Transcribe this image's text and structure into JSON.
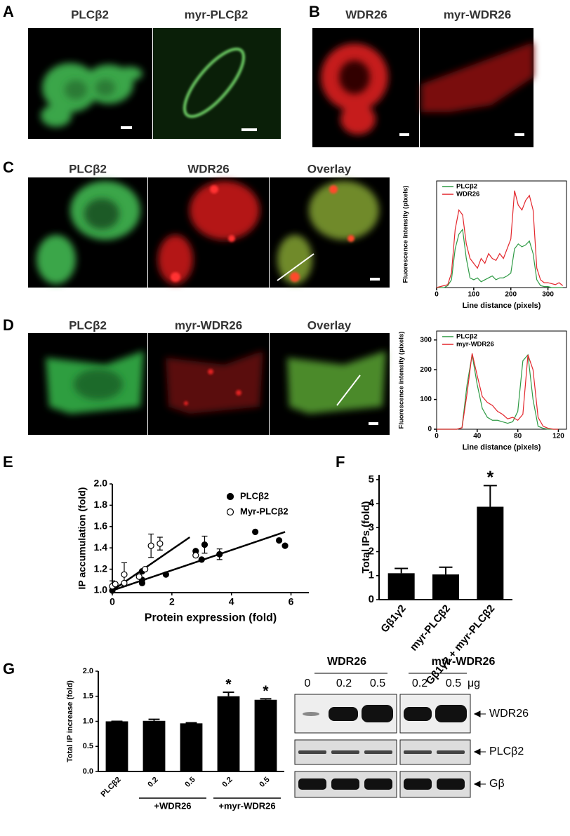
{
  "panel_labels": [
    "A",
    "B",
    "C",
    "D",
    "E",
    "F",
    "G"
  ],
  "image_titles": {
    "A": [
      "PLCβ2",
      "myr-PLCβ2"
    ],
    "B": [
      "WDR26",
      "myr-WDR26"
    ],
    "C": [
      "PLCβ2",
      "WDR26",
      "Overlay"
    ],
    "D": [
      "PLCβ2",
      "myr-WDR26",
      "Overlay"
    ]
  },
  "blot": {
    "groups": [
      "WDR26",
      "myr-WDR26"
    ],
    "lanes": [
      "0",
      "0.2",
      "0.5",
      "0.2",
      "0.5"
    ],
    "unit": "μg",
    "bands": [
      "WDR26",
      "PLCβ2",
      "Gβ"
    ]
  },
  "chart_data": [
    {
      "type": "line",
      "xlabel": "Line distance (pixels)",
      "ylabel": "Fluorescence intensity (pixels)",
      "box": true,
      "legend": "upper-left",
      "x": [
        0,
        10,
        20,
        30,
        40,
        50,
        60,
        70,
        80,
        90,
        100,
        110,
        120,
        130,
        140,
        150,
        160,
        170,
        180,
        190,
        200,
        210,
        220,
        230,
        240,
        250,
        260,
        270,
        280,
        290,
        300,
        310,
        320,
        330,
        340
      ],
      "xlim": [
        0,
        350
      ],
      "xticks": [
        0,
        100,
        200,
        300
      ],
      "ylim": [
        0,
        110
      ],
      "series": [
        {
          "name": "PLCβ2",
          "color": "#2e9a44",
          "values": [
            0,
            0,
            0,
            2,
            8,
            40,
            55,
            60,
            30,
            10,
            8,
            10,
            6,
            8,
            10,
            12,
            8,
            10,
            10,
            12,
            15,
            40,
            45,
            42,
            44,
            48,
            35,
            8,
            2,
            1,
            1,
            0,
            0,
            0,
            0
          ]
        },
        {
          "name": "WDR26",
          "color": "#e3262c",
          "values": [
            0,
            1,
            2,
            3,
            15,
            60,
            80,
            75,
            45,
            30,
            25,
            20,
            30,
            25,
            35,
            30,
            28,
            35,
            30,
            40,
            50,
            100,
            85,
            80,
            90,
            95,
            80,
            20,
            8,
            5,
            5,
            4,
            3,
            5,
            2
          ]
        }
      ]
    },
    {
      "type": "line",
      "xlabel": "Line distance (pixels)",
      "ylabel": "Fluorescence intensity (pixels)",
      "box": true,
      "legend": "upper-left",
      "x": [
        0,
        5,
        10,
        15,
        20,
        25,
        30,
        35,
        40,
        45,
        50,
        55,
        60,
        65,
        70,
        75,
        80,
        85,
        90,
        95,
        100,
        105,
        110,
        115,
        120
      ],
      "xlim": [
        0,
        128
      ],
      "xticks": [
        0,
        40,
        80,
        120
      ],
      "ylim": [
        0,
        330
      ],
      "yticks": [
        0,
        100,
        200,
        300
      ],
      "series": [
        {
          "name": "PLCβ2",
          "color": "#2e9a44",
          "values": [
            0,
            0,
            0,
            0,
            0,
            5,
            150,
            250,
            150,
            70,
            40,
            30,
            30,
            25,
            20,
            25,
            60,
            230,
            250,
            100,
            10,
            3,
            0,
            0,
            0
          ]
        },
        {
          "name": "myr-WDR26",
          "color": "#e3262c",
          "values": [
            0,
            0,
            0,
            0,
            0,
            5,
            120,
            255,
            180,
            110,
            90,
            80,
            60,
            50,
            35,
            40,
            30,
            50,
            250,
            200,
            40,
            10,
            3,
            0,
            0
          ]
        }
      ]
    },
    {
      "type": "scatter",
      "xlabel": "Protein expression (fold)",
      "ylabel": "IP accumulation (fold)",
      "legend": "upper-right",
      "xlim": [
        0,
        6.6
      ],
      "xticks": [
        0,
        2,
        4,
        6
      ],
      "ylim": [
        0.98,
        2.0
      ],
      "yticks": [
        {
          "value": 1.0,
          "label": "1.0"
        },
        1.2,
        1.4,
        1.6,
        1.8,
        {
          "value": 2.0,
          "label": "2.0"
        }
      ],
      "series": [
        {
          "name": "PLCβ2",
          "color": "#000000",
          "marker": "filled",
          "x": [
            0,
            1.0,
            1.0,
            1.0,
            1.8,
            2.8,
            3.0,
            3.1,
            3.6,
            4.8,
            5.6,
            5.8
          ],
          "values": [
            1.0,
            1.07,
            1.1,
            1.18,
            1.15,
            1.37,
            1.29,
            1.43,
            1.34,
            1.55,
            1.47,
            1.42
          ],
          "errors": [
            null,
            null,
            null,
            null,
            null,
            null,
            null,
            0.08,
            0.05,
            null,
            null,
            null
          ],
          "fit": {
            "x": [
              0,
              5.8
            ],
            "values": [
              1.0,
              1.55
            ]
          }
        },
        {
          "name": "Myr-PLCβ2",
          "color": "#000000",
          "marker": "open",
          "x": [
            0,
            0.1,
            0.4,
            0.4,
            0.9,
            1.1,
            1.3,
            1.6,
            2.8
          ],
          "values": [
            1.04,
            1.06,
            1.15,
            1.07,
            1.13,
            1.2,
            1.42,
            1.44,
            1.33
          ],
          "errors": [
            0.05,
            null,
            0.11,
            null,
            null,
            null,
            0.11,
            0.06,
            null
          ],
          "fit": {
            "x": [
              0,
              2.6
            ],
            "values": [
              1.0,
              1.5
            ]
          }
        }
      ]
    },
    {
      "type": "bar",
      "ylabel": "Total IPs (fold)",
      "color": "#000000",
      "categories": [
        "Gβ1γ2",
        "myr-PLCβ2",
        "Gβ1γ2 + myr-PLCβ2"
      ],
      "values": [
        1.1,
        1.05,
        3.87
      ],
      "errors": [
        0.2,
        0.3,
        0.88
      ],
      "significance": [
        null,
        null,
        "*"
      ],
      "ylim": [
        0,
        5.2
      ],
      "yticks": [
        0,
        1,
        2,
        3,
        4,
        5
      ]
    },
    {
      "type": "bar",
      "ylabel": "Total IP increase (fold)",
      "color": "#000000",
      "categories": [
        "PLCβ2",
        "0.2",
        "0.5",
        "0.2",
        "0.5"
      ],
      "category_groups": [
        null,
        "+WDR26",
        "+WDR26",
        "+myr-WDR26",
        "+myr-WDR26"
      ],
      "values": [
        1.0,
        1.01,
        0.96,
        1.5,
        1.43
      ],
      "errors": [
        0,
        0.03,
        0.01,
        0.08,
        0.02
      ],
      "significance": [
        null,
        null,
        null,
        "*",
        "*"
      ],
      "ylim": [
        0,
        2.0
      ],
      "yticks": [
        {
          "value": 0,
          "label": "0.0"
        },
        0.5,
        {
          "value": 1,
          "label": "1.0"
        },
        1.5,
        {
          "value": 2,
          "label": "2.0"
        }
      ]
    }
  ]
}
